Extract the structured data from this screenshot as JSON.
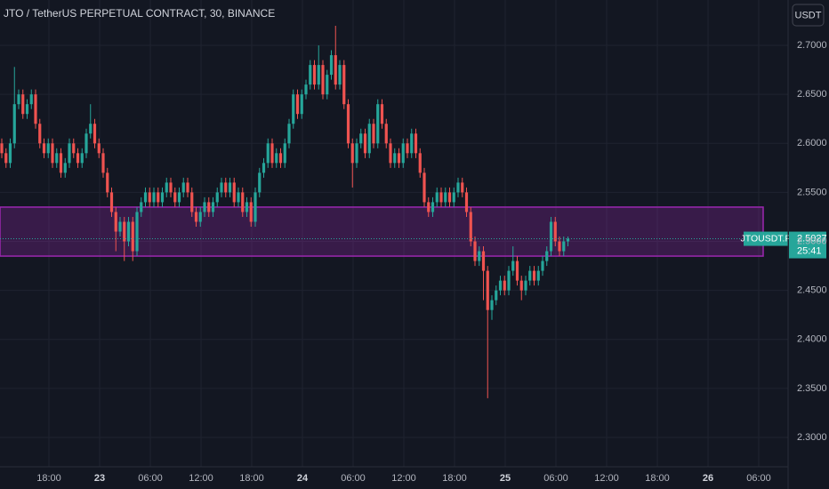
{
  "chart_data": {
    "type": "candlestick",
    "title": "JTO / TetherUS PERPETUAL CONTRACT, 30, BINANCE",
    "currency": "USDT",
    "symbol": "JTOUSDT.P",
    "countdown": "25:41",
    "up_color": "#26a69a",
    "down_color": "#ef5350",
    "zone": [
      2.485,
      2.535
    ],
    "zone_color": "#9c27b0",
    "grid": true,
    "ylim": [
      2.2746,
      2.7463
    ],
    "yticks": [
      {
        "value": 2.7,
        "label": "2.7000"
      },
      {
        "value": 2.65,
        "label": "2.6500"
      },
      {
        "value": 2.6,
        "label": "2.6000"
      },
      {
        "value": 2.55,
        "label": "2.5500"
      },
      {
        "value": 2.5,
        "label": "2.5000"
      },
      {
        "value": 2.45,
        "label": "2.4500"
      },
      {
        "value": 2.4,
        "label": "2.4000"
      },
      {
        "value": 2.35,
        "label": "2.3500"
      },
      {
        "value": 2.3,
        "label": "2.3000"
      }
    ],
    "xtick_labels": [
      "18:00",
      "23",
      "06:00",
      "12:00",
      "18:00",
      "24",
      "06:00",
      "12:00",
      "18:00",
      "25",
      "06:00",
      "12:00",
      "18:00",
      "26",
      "06:00"
    ],
    "open": [
      2.6,
      2.59,
      2.58,
      2.6,
      2.64,
      2.65,
      2.63,
      2.64,
      2.65,
      2.62,
      2.6,
      2.59,
      2.6,
      2.58,
      2.59,
      2.57,
      2.58,
      2.6,
      2.59,
      2.58,
      2.59,
      2.61,
      2.62,
      2.6,
      2.59,
      2.57,
      2.55,
      2.53,
      2.51,
      2.52,
      2.5,
      2.52,
      2.49,
      2.53,
      2.54,
      2.55,
      2.54,
      2.55,
      2.54,
      2.55,
      2.56,
      2.55,
      2.54,
      2.55,
      2.56,
      2.55,
      2.53,
      2.52,
      2.53,
      2.54,
      2.53,
      2.54,
      2.55,
      2.56,
      2.55,
      2.56,
      2.54,
      2.55,
      2.53,
      2.54,
      2.52,
      2.55,
      2.57,
      2.58,
      2.6,
      2.58,
      2.59,
      2.58,
      2.6,
      2.62,
      2.65,
      2.63,
      2.65,
      2.66,
      2.68,
      2.66,
      2.68,
      2.65,
      2.67,
      2.69,
      2.66,
      2.68,
      2.64,
      2.6,
      2.58,
      2.6,
      2.61,
      2.59,
      2.62,
      2.6,
      2.64,
      2.62,
      2.6,
      2.58,
      2.59,
      2.58,
      2.6,
      2.59,
      2.61,
      2.59,
      2.57,
      2.54,
      2.53,
      2.54,
      2.55,
      2.54,
      2.55,
      2.54,
      2.55,
      2.56,
      2.55,
      2.53,
      2.5,
      2.48,
      2.49,
      2.47,
      2.43,
      2.44,
      2.45,
      2.46,
      2.45,
      2.47,
      2.48,
      2.46,
      2.45,
      2.46,
      2.47,
      2.46,
      2.47,
      2.48,
      2.49,
      2.52,
      2.5,
      2.49,
      2.5
    ],
    "high": [
      2.605,
      2.595,
      2.605,
      2.678,
      2.655,
      2.655,
      2.645,
      2.655,
      2.655,
      2.625,
      2.605,
      2.605,
      2.605,
      2.595,
      2.595,
      2.585,
      2.605,
      2.605,
      2.595,
      2.595,
      2.615,
      2.64,
      2.625,
      2.605,
      2.595,
      2.575,
      2.555,
      2.535,
      2.525,
      2.525,
      2.525,
      2.525,
      2.535,
      2.545,
      2.555,
      2.555,
      2.555,
      2.555,
      2.555,
      2.565,
      2.565,
      2.555,
      2.555,
      2.565,
      2.565,
      2.555,
      2.535,
      2.535,
      2.545,
      2.545,
      2.545,
      2.555,
      2.565,
      2.565,
      2.565,
      2.565,
      2.555,
      2.555,
      2.545,
      2.545,
      2.555,
      2.575,
      2.585,
      2.605,
      2.605,
      2.595,
      2.595,
      2.605,
      2.625,
      2.655,
      2.655,
      2.655,
      2.665,
      2.685,
      2.685,
      2.7,
      2.685,
      2.675,
      2.695,
      2.72,
      2.685,
      2.685,
      2.645,
      2.605,
      2.605,
      2.615,
      2.615,
      2.625,
      2.625,
      2.645,
      2.645,
      2.625,
      2.605,
      2.595,
      2.595,
      2.605,
      2.605,
      2.615,
      2.615,
      2.595,
      2.575,
      2.545,
      2.545,
      2.555,
      2.555,
      2.555,
      2.555,
      2.555,
      2.565,
      2.565,
      2.555,
      2.535,
      2.505,
      2.495,
      2.495,
      2.475,
      2.445,
      2.455,
      2.465,
      2.465,
      2.475,
      2.495,
      2.485,
      2.465,
      2.465,
      2.475,
      2.475,
      2.475,
      2.485,
      2.495,
      2.525,
      2.525,
      2.505,
      2.505,
      2.505
    ],
    "low": [
      2.585,
      2.575,
      2.575,
      2.595,
      2.635,
      2.625,
      2.625,
      2.635,
      2.615,
      2.595,
      2.585,
      2.585,
      2.575,
      2.575,
      2.565,
      2.565,
      2.575,
      2.585,
      2.575,
      2.575,
      2.585,
      2.605,
      2.595,
      2.585,
      2.565,
      2.545,
      2.525,
      2.49,
      2.505,
      2.48,
      2.495,
      2.48,
      2.485,
      2.525,
      2.535,
      2.535,
      2.535,
      2.535,
      2.535,
      2.545,
      2.545,
      2.535,
      2.535,
      2.545,
      2.545,
      2.525,
      2.515,
      2.515,
      2.525,
      2.525,
      2.525,
      2.535,
      2.545,
      2.545,
      2.545,
      2.535,
      2.535,
      2.525,
      2.525,
      2.515,
      2.515,
      2.545,
      2.565,
      2.575,
      2.575,
      2.575,
      2.575,
      2.575,
      2.595,
      2.615,
      2.625,
      2.625,
      2.645,
      2.655,
      2.655,
      2.655,
      2.645,
      2.645,
      2.665,
      2.655,
      2.655,
      2.635,
      2.595,
      2.555,
      2.575,
      2.595,
      2.585,
      2.585,
      2.595,
      2.595,
      2.615,
      2.595,
      2.575,
      2.575,
      2.575,
      2.575,
      2.585,
      2.585,
      2.585,
      2.565,
      2.535,
      2.525,
      2.525,
      2.535,
      2.535,
      2.535,
      2.535,
      2.535,
      2.545,
      2.545,
      2.525,
      2.495,
      2.475,
      2.475,
      2.44,
      2.34,
      2.42,
      2.435,
      2.445,
      2.445,
      2.445,
      2.465,
      2.455,
      2.44,
      2.445,
      2.455,
      2.455,
      2.455,
      2.465,
      2.475,
      2.485,
      2.495,
      2.485,
      2.485,
      2.495
    ],
    "close": [
      2.59,
      2.58,
      2.6,
      2.64,
      2.65,
      2.63,
      2.64,
      2.65,
      2.62,
      2.6,
      2.59,
      2.6,
      2.58,
      2.59,
      2.57,
      2.58,
      2.6,
      2.59,
      2.58,
      2.59,
      2.61,
      2.62,
      2.6,
      2.59,
      2.57,
      2.55,
      2.53,
      2.51,
      2.52,
      2.5,
      2.52,
      2.49,
      2.53,
      2.54,
      2.55,
      2.54,
      2.55,
      2.54,
      2.55,
      2.56,
      2.55,
      2.54,
      2.55,
      2.56,
      2.55,
      2.53,
      2.52,
      2.53,
      2.54,
      2.53,
      2.54,
      2.55,
      2.56,
      2.55,
      2.56,
      2.54,
      2.55,
      2.53,
      2.54,
      2.52,
      2.55,
      2.57,
      2.58,
      2.6,
      2.58,
      2.59,
      2.58,
      2.6,
      2.62,
      2.65,
      2.63,
      2.65,
      2.66,
      2.68,
      2.66,
      2.68,
      2.65,
      2.67,
      2.69,
      2.66,
      2.68,
      2.64,
      2.6,
      2.58,
      2.6,
      2.61,
      2.59,
      2.62,
      2.6,
      2.64,
      2.62,
      2.6,
      2.58,
      2.59,
      2.58,
      2.6,
      2.59,
      2.61,
      2.59,
      2.57,
      2.54,
      2.53,
      2.54,
      2.55,
      2.54,
      2.55,
      2.54,
      2.55,
      2.56,
      2.55,
      2.53,
      2.5,
      2.48,
      2.49,
      2.47,
      2.43,
      2.44,
      2.45,
      2.46,
      2.45,
      2.47,
      2.48,
      2.46,
      2.45,
      2.46,
      2.47,
      2.46,
      2.47,
      2.48,
      2.49,
      2.52,
      2.5,
      2.49,
      2.5,
      2.5027
    ]
  }
}
